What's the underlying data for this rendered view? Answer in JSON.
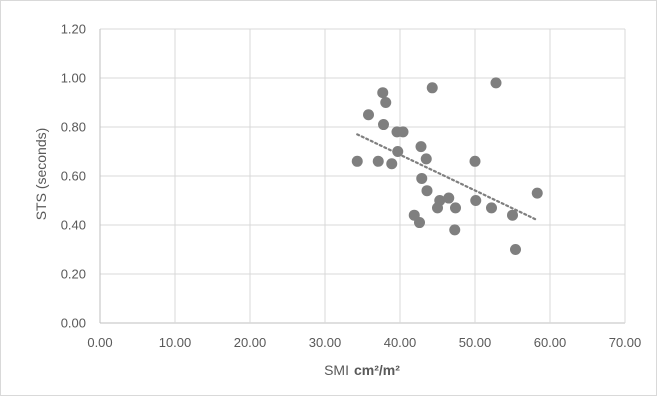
{
  "chart_data": {
    "type": "scatter",
    "xlabel": "SMI",
    "xlabel_unit": "cm²/m²",
    "ylabel": "STS (seconds)",
    "xlim": [
      0,
      70
    ],
    "ylim": [
      0,
      1.2
    ],
    "x_ticks": [
      "0.00",
      "10.00",
      "20.00",
      "30.00",
      "40.00",
      "50.00",
      "60.00",
      "70.00"
    ],
    "y_ticks": [
      "0.00",
      "0.20",
      "0.40",
      "0.60",
      "0.80",
      "1.00",
      "1.20"
    ],
    "x_tick_values": [
      0,
      10,
      20,
      30,
      40,
      50,
      60,
      70
    ],
    "y_tick_values": [
      0,
      0.2,
      0.4,
      0.6,
      0.8,
      1.0,
      1.2
    ],
    "grid": true,
    "marker_color": "#7f7f7f",
    "trendline_color": "#7f7f7f",
    "points": [
      {
        "x": 34.3,
        "y": 0.66
      },
      {
        "x": 35.8,
        "y": 0.85
      },
      {
        "x": 37.1,
        "y": 0.66
      },
      {
        "x": 37.7,
        "y": 0.94
      },
      {
        "x": 37.8,
        "y": 0.81
      },
      {
        "x": 38.1,
        "y": 0.9
      },
      {
        "x": 38.9,
        "y": 0.65
      },
      {
        "x": 39.6,
        "y": 0.78
      },
      {
        "x": 39.7,
        "y": 0.7
      },
      {
        "x": 40.4,
        "y": 0.78
      },
      {
        "x": 41.9,
        "y": 0.44
      },
      {
        "x": 42.6,
        "y": 0.41
      },
      {
        "x": 42.8,
        "y": 0.72
      },
      {
        "x": 42.9,
        "y": 0.59
      },
      {
        "x": 43.5,
        "y": 0.67
      },
      {
        "x": 43.6,
        "y": 0.54
      },
      {
        "x": 44.3,
        "y": 0.96
      },
      {
        "x": 45.0,
        "y": 0.47
      },
      {
        "x": 45.3,
        "y": 0.5
      },
      {
        "x": 46.5,
        "y": 0.51
      },
      {
        "x": 47.3,
        "y": 0.38
      },
      {
        "x": 47.4,
        "y": 0.47
      },
      {
        "x": 50.0,
        "y": 0.66
      },
      {
        "x": 50.1,
        "y": 0.5
      },
      {
        "x": 52.2,
        "y": 0.47
      },
      {
        "x": 52.8,
        "y": 0.98
      },
      {
        "x": 55.0,
        "y": 0.44
      },
      {
        "x": 55.4,
        "y": 0.3
      },
      {
        "x": 58.3,
        "y": 0.53
      }
    ],
    "trendline": {
      "type": "linear",
      "x": [
        34.3,
        58.3
      ],
      "y": [
        0.77,
        0.42
      ]
    }
  }
}
